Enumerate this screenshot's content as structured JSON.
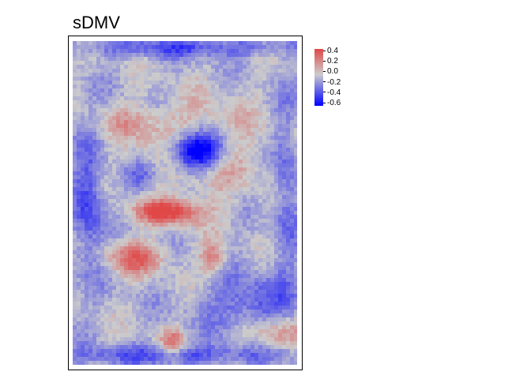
{
  "chart_data": {
    "type": "heatmap",
    "title": "sDMV",
    "xlabel": "",
    "ylabel": "",
    "legend": {
      "position": "right",
      "min": -0.65,
      "max": 0.45,
      "ticks": [
        "0.4",
        "0.2",
        "0.0",
        "-0.2",
        "-0.4",
        "-0.6"
      ],
      "tick_values": [
        0.4,
        0.2,
        0.0,
        -0.2,
        -0.4,
        -0.6
      ],
      "colors": {
        "low": "#0000ff",
        "mid": "#cccccc",
        "high": "#e04848"
      }
    },
    "grid": false,
    "features": [
      {
        "cx": 0.55,
        "cy": 0.34,
        "sx": 0.27,
        "sy": 0.14,
        "v": 0.3
      },
      {
        "cx": 0.55,
        "cy": 0.34,
        "sx": 0.12,
        "sy": 0.06,
        "v": -0.95
      },
      {
        "cx": 0.42,
        "cy": 0.53,
        "sx": 0.15,
        "sy": 0.035,
        "v": 0.55
      },
      {
        "cx": 0.28,
        "cy": 0.67,
        "sx": 0.13,
        "sy": 0.05,
        "v": 0.4
      },
      {
        "cx": 0.62,
        "cy": 0.67,
        "sx": 0.06,
        "sy": 0.05,
        "v": 0.35
      },
      {
        "cx": 0.44,
        "cy": 0.93,
        "sx": 0.05,
        "sy": 0.04,
        "v": 0.35
      },
      {
        "cx": 0.88,
        "cy": 0.9,
        "sx": 0.14,
        "sy": 0.05,
        "v": 0.35
      },
      {
        "cx": 0.25,
        "cy": 0.25,
        "sx": 0.15,
        "sy": 0.05,
        "v": 0.15
      },
      {
        "cx": 0.3,
        "cy": 0.42,
        "sx": 0.1,
        "sy": 0.05,
        "v": -0.25
      },
      {
        "cx": 0.07,
        "cy": 0.5,
        "sx": 0.07,
        "sy": 0.2,
        "v": -0.35
      },
      {
        "cx": 0.95,
        "cy": 0.45,
        "sx": 0.06,
        "sy": 0.25,
        "v": -0.25
      },
      {
        "cx": 0.5,
        "cy": 0.02,
        "sx": 0.5,
        "sy": 0.03,
        "v": -0.3
      },
      {
        "cx": 0.45,
        "cy": 0.97,
        "sx": 0.5,
        "sy": 0.03,
        "v": -0.3
      },
      {
        "cx": 0.8,
        "cy": 0.82,
        "sx": 0.2,
        "sy": 0.1,
        "v": -0.3
      }
    ]
  }
}
